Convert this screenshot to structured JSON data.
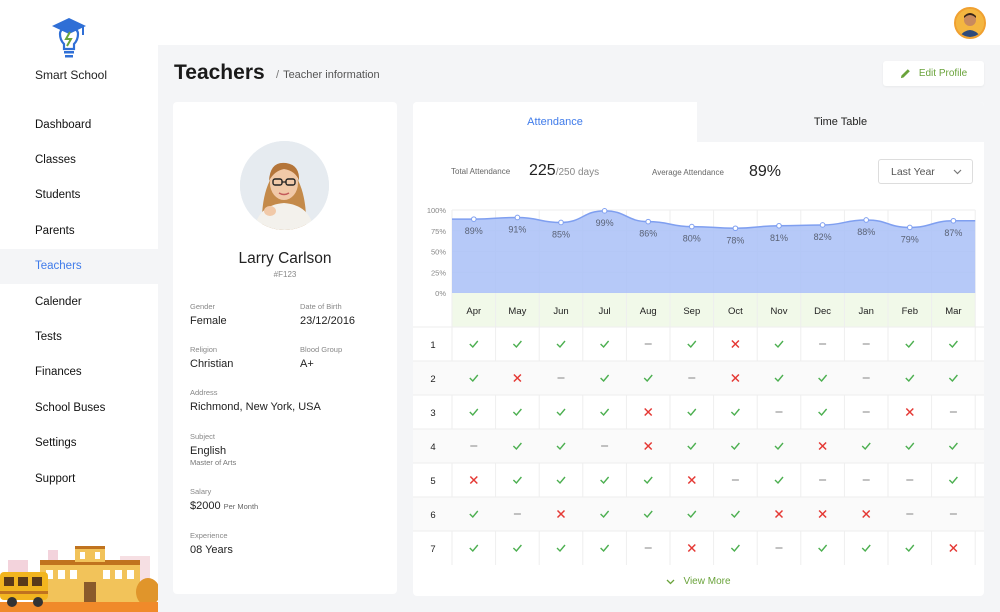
{
  "brand": {
    "name": "Smart School",
    "logo_icon": "graduation-bulb-icon"
  },
  "sidebar": {
    "items": [
      {
        "label": "Dashboard",
        "active": false
      },
      {
        "label": "Classes",
        "active": false
      },
      {
        "label": "Students",
        "active": false
      },
      {
        "label": "Parents",
        "active": false
      },
      {
        "label": "Teachers",
        "active": true
      },
      {
        "label": "Calender",
        "active": false
      },
      {
        "label": "Tests",
        "active": false
      },
      {
        "label": "Finances",
        "active": false
      },
      {
        "label": "School Buses",
        "active": false
      },
      {
        "label": "Settings",
        "active": false
      },
      {
        "label": "Support",
        "active": false
      }
    ]
  },
  "header": {
    "title": "Teachers",
    "separator": "/",
    "breadcrumb": "Teacher information",
    "edit_label": "Edit Profile"
  },
  "profile": {
    "name": "Larry Carlson",
    "id": "#F123",
    "gender_label": "Gender",
    "gender": "Female",
    "dob_label": "Date of Birth",
    "dob": "23/12/2016",
    "religion_label": "Religion",
    "religion": "Christian",
    "blood_label": "Blood Group",
    "blood": "A+",
    "address_label": "Address",
    "address": "Richmond, New York, USA",
    "subject_label": "Subject",
    "subject": "English",
    "degree": "Master of Arts",
    "salary_label": "Salary",
    "salary": "$2000",
    "salary_suffix": "Per Month",
    "experience_label": "Experience",
    "experience": "08 Years"
  },
  "tabs": {
    "attendance": "Attendance",
    "timetable": "Time Table"
  },
  "stats": {
    "total_label": "Total Attendance",
    "total_value": "225",
    "total_of": "/250 days",
    "avg_label": "Average Attendance",
    "avg_value": "89%",
    "period": "Last Year"
  },
  "colors": {
    "accent": "#3f7bea",
    "green": "#6aa33b",
    "check": "#4caf50",
    "cross": "#e53935",
    "area": "#a9bff7",
    "month_bg": "#f1f9e9"
  },
  "chart_data": {
    "type": "area",
    "categories": [
      "Apr",
      "May",
      "Jun",
      "Jul",
      "Aug",
      "Sep",
      "Oct",
      "Nov",
      "Dec",
      "Jan",
      "Feb",
      "Mar"
    ],
    "values": [
      89,
      91,
      85,
      99,
      86,
      80,
      78,
      81,
      82,
      88,
      79,
      87
    ],
    "value_labels": [
      "89%",
      "91%",
      "85%",
      "99%",
      "86%",
      "80%",
      "78%",
      "81%",
      "82%",
      "88%",
      "79%",
      "87%"
    ],
    "y_ticks": [
      "100%",
      "75%",
      "50%",
      "25%",
      "0%"
    ],
    "ylim": [
      0,
      100
    ],
    "grid": true
  },
  "attendance": {
    "days": [
      "1",
      "2",
      "3",
      "4",
      "5",
      "6",
      "7"
    ],
    "rows": [
      [
        "c",
        "c",
        "c",
        "c",
        "d",
        "c",
        "x",
        "c",
        "d",
        "d",
        "c",
        "c"
      ],
      [
        "c",
        "x",
        "d",
        "c",
        "c",
        "d",
        "x",
        "c",
        "c",
        "d",
        "c",
        "c"
      ],
      [
        "c",
        "c",
        "c",
        "c",
        "x",
        "c",
        "c",
        "d",
        "c",
        "d",
        "x",
        "d"
      ],
      [
        "d",
        "c",
        "c",
        "d",
        "x",
        "c",
        "c",
        "c",
        "x",
        "c",
        "c",
        "c"
      ],
      [
        "x",
        "c",
        "c",
        "c",
        "c",
        "x",
        "d",
        "c",
        "d",
        "d",
        "d",
        "c"
      ],
      [
        "c",
        "d",
        "x",
        "c",
        "c",
        "c",
        "c",
        "x",
        "x",
        "x",
        "d",
        "d"
      ],
      [
        "c",
        "c",
        "c",
        "c",
        "d",
        "x",
        "c",
        "d",
        "c",
        "c",
        "c",
        "x"
      ]
    ]
  },
  "view_more": "View More"
}
